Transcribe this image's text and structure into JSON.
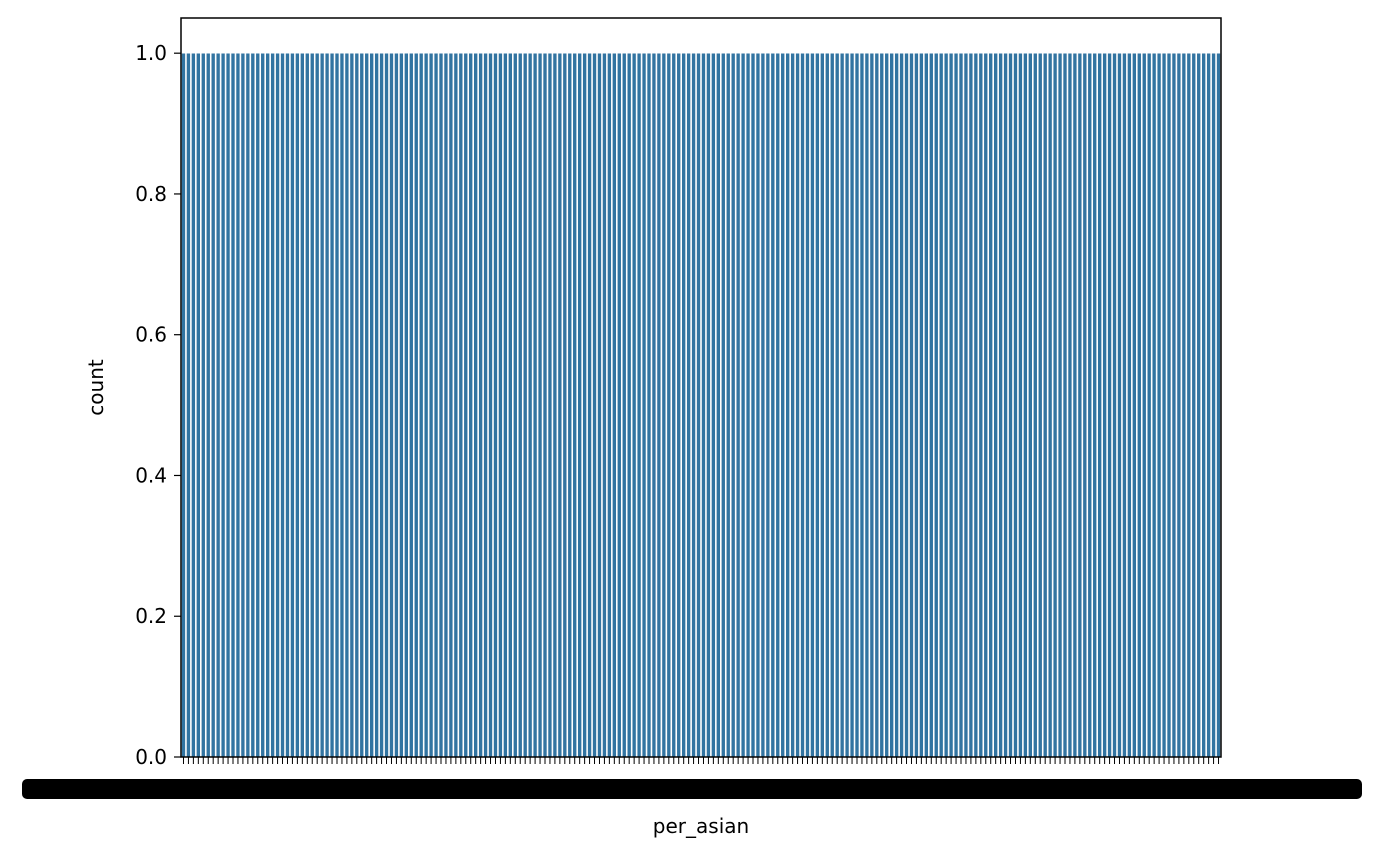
{
  "chart_data": {
    "type": "bar",
    "xlabel": "per_asian",
    "ylabel": "count",
    "ylim": [
      0,
      1.05
    ],
    "yticks": [
      0.0,
      0.2,
      0.4,
      0.6,
      0.8,
      1.0
    ],
    "ytick_labels": [
      "0.0",
      "0.2",
      "0.4",
      "0.6",
      "0.8",
      "1.0"
    ],
    "category_count": 210,
    "value_per_category": 1.0,
    "bar_color": "#3274a1",
    "edge_color": "#ffffff",
    "grid": false,
    "legend": "none",
    "xtick_labels_note": "tick labels overlap into an unreadable dark band"
  }
}
